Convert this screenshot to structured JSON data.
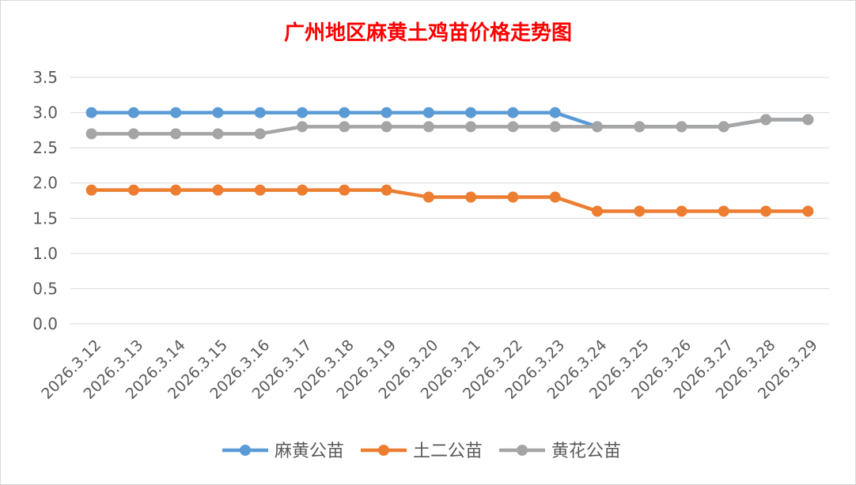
{
  "chart_data": {
    "type": "line",
    "title": "广州地区麻黄土鸡苗价格走势图",
    "xlabel": "",
    "ylabel": "",
    "categories": [
      "2026.3.12",
      "2026.3.13",
      "2026.3.14",
      "2026.3.15",
      "2026.3.16",
      "2026.3.17",
      "2026.3.18",
      "2026.3.19",
      "2026.3.20",
      "2026.3.21",
      "2026.3.22",
      "2026.3.23",
      "2026.3.24",
      "2026.3.25",
      "2026.3.26",
      "2026.3.27",
      "2026.3.28",
      "2026.3.29"
    ],
    "ylim": [
      0,
      3.5
    ],
    "yticks": [
      "0.0",
      "0.5",
      "1.0",
      "1.5",
      "2.0",
      "2.5",
      "3.0",
      "3.5"
    ],
    "grid": true,
    "legend_position": "bottom",
    "series": [
      {
        "name": "麻黄公苗",
        "color": "#5b9bd5",
        "values": [
          3.0,
          3.0,
          3.0,
          3.0,
          3.0,
          3.0,
          3.0,
          3.0,
          3.0,
          3.0,
          3.0,
          3.0,
          2.8,
          2.8,
          2.8,
          2.8,
          2.9,
          2.9
        ]
      },
      {
        "name": "土二公苗",
        "color": "#ed7d31",
        "values": [
          1.9,
          1.9,
          1.9,
          1.9,
          1.9,
          1.9,
          1.9,
          1.9,
          1.8,
          1.8,
          1.8,
          1.8,
          1.6,
          1.6,
          1.6,
          1.6,
          1.6,
          1.6
        ]
      },
      {
        "name": "黄花公苗",
        "color": "#a5a5a5",
        "values": [
          2.7,
          2.7,
          2.7,
          2.7,
          2.7,
          2.8,
          2.8,
          2.8,
          2.8,
          2.8,
          2.8,
          2.8,
          2.8,
          2.8,
          2.8,
          2.8,
          2.9,
          2.9
        ]
      }
    ]
  }
}
